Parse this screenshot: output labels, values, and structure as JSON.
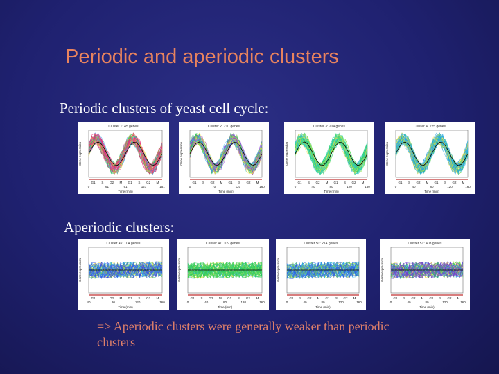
{
  "title": "Periodic and aperiodic clusters",
  "periodic_label": "Periodic clusters of yeast cell cycle:",
  "aperiodic_label": "Aperiodic clusters:",
  "conclusion": "=> Aperiodic clusters were generally weaker than periodic clusters",
  "periodic_panels": [
    {
      "title": "Cluster 1: 45 genes",
      "xlabel": "Time (min)",
      "ylabel": "Gene expression",
      "phases": [
        "G1",
        "S",
        "G2",
        "M",
        "G1",
        "S",
        "G2",
        "M"
      ],
      "ticks": [
        "0",
        "61",
        "91",
        "121",
        "151"
      ],
      "color": "#e8307e"
    },
    {
      "title": "Cluster 2: 210 genes",
      "xlabel": "Time (min)",
      "ylabel": "Gene expression",
      "phases": [
        "G1",
        "S",
        "G2",
        "M",
        "G1",
        "S",
        "G2",
        "M"
      ],
      "ticks": [
        "0",
        "70",
        "120",
        "160"
      ],
      "color": "#9040d8"
    },
    {
      "title": "Cluster 3: 204 genes",
      "xlabel": "Time (min)",
      "ylabel": "Gene expression",
      "phases": [
        "G1",
        "S",
        "G2",
        "M",
        "G1",
        "S",
        "G2",
        "M"
      ],
      "ticks": [
        "0",
        "40",
        "80",
        "120",
        "160"
      ],
      "color": "#30d4a0"
    },
    {
      "title": "Cluster 4: 225 genes",
      "xlabel": "Time (min)",
      "ylabel": "Gene expression",
      "phases": [
        "G1",
        "S",
        "G2",
        "M",
        "G1",
        "S",
        "G2",
        "M"
      ],
      "ticks": [
        "0",
        "40",
        "80",
        "120",
        "160"
      ],
      "color": "#2aa8e0"
    }
  ],
  "aperiodic_panels": [
    {
      "title": "Cluster 45: 104 genes",
      "xlabel": "Time (min)",
      "ylabel": "Gene expression",
      "phases": [
        "G1",
        "S",
        "G2",
        "M",
        "G1",
        "S",
        "G2",
        "M"
      ],
      "ticks": [
        "40",
        "80",
        "120",
        "160"
      ],
      "color": "#3a50e0"
    },
    {
      "title": "Cluster 47: 109 genes",
      "xlabel": "Time (min)",
      "ylabel": "Gene expression",
      "phases": [
        "G1",
        "S",
        "G2",
        "M",
        "G1",
        "S",
        "G2",
        "M"
      ],
      "ticks": [
        "0",
        "40",
        "80",
        "120",
        "160"
      ],
      "color": "#40d060"
    },
    {
      "title": "Cluster 50: 214 genes",
      "xlabel": "Time (min)",
      "ylabel": "Gene expression",
      "phases": [
        "G1",
        "S",
        "G2",
        "M",
        "G1",
        "S",
        "G2",
        "M"
      ],
      "ticks": [
        "0",
        "40",
        "80",
        "120",
        "160"
      ],
      "color": "#3060e0"
    },
    {
      "title": "Cluster 51: 403 genes",
      "xlabel": "Time (min)",
      "ylabel": "Gene expression",
      "phases": [
        "G1",
        "S",
        "G2",
        "M",
        "G1",
        "S",
        "G2",
        "M"
      ],
      "ticks": [
        "0",
        "40",
        "80",
        "120",
        "160"
      ],
      "color": "#7040d0"
    }
  ]
}
